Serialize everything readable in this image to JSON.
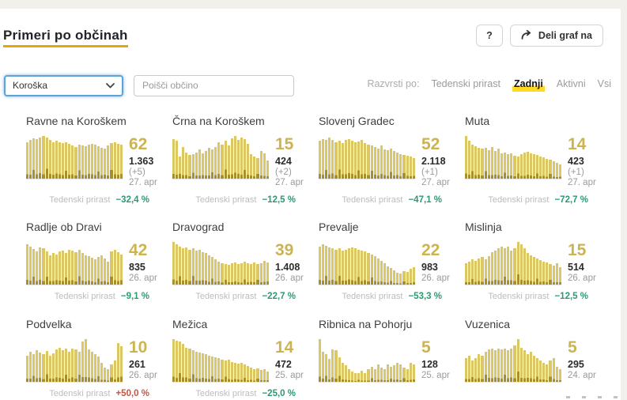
{
  "header": {
    "title": "Primeri po občinah",
    "help_label": "?",
    "share_label": "Deli graf na"
  },
  "filters": {
    "region_value": "Koroška",
    "search_placeholder": "Poišči občino",
    "sort_by_label": "Razvrsti po:",
    "sort_options": [
      {
        "label": "Tedenski prirast"
      },
      {
        "label": "Zadnji"
      },
      {
        "label": "Aktivni"
      },
      {
        "label": "Vsi"
      }
    ]
  },
  "colors": {
    "accent_yellow": "#ffd922",
    "title_underline": "#e2a70b",
    "bar_light": "#dcc765",
    "bar_dark": "#a98e2c",
    "growth_green": "#2c9a6f",
    "growth_red": "#bf5747",
    "focus_blue": "#5ea3d8"
  },
  "cards": [
    {
      "title": "Ravne na Koroškem",
      "active": "62",
      "total": "1.363",
      "delta": "(+5)",
      "date": "27. apr",
      "growth_label": "Tedenski prirast",
      "growth_value": "−32,4 %",
      "growth_style": "color:#2c9a6f",
      "bars": [
        0.86,
        0.9,
        0.95,
        0.93,
        0.97,
        1.0,
        0.96,
        0.9,
        0.86,
        0.88,
        0.86,
        0.84,
        0.85,
        0.82,
        0.78,
        0.74,
        0.8,
        0.78,
        0.76,
        0.8,
        0.82,
        0.79,
        0.76,
        0.72,
        0.7,
        0.78,
        0.83,
        0.85,
        0.82,
        0.79
      ]
    },
    {
      "title": "Črna na Koroškem",
      "active": "15",
      "total": "424",
      "delta": "(+2)",
      "date": "27. apr",
      "growth_label": "Tedenski prirast",
      "growth_value": "−12,5 %",
      "growth_style": "color:#2c9a6f",
      "bars": [
        0.93,
        0.88,
        0.52,
        0.75,
        0.62,
        0.55,
        0.58,
        0.62,
        0.68,
        0.6,
        0.65,
        0.72,
        0.68,
        0.75,
        0.85,
        0.8,
        0.88,
        0.78,
        0.95,
        1.0,
        0.9,
        0.97,
        0.93,
        0.82,
        0.58,
        0.52,
        0.48,
        0.65,
        0.6,
        0.42
      ]
    },
    {
      "title": "Slovenj Gradec",
      "active": "52",
      "total": "2.118",
      "delta": "(+1)",
      "date": "27. apr",
      "growth_label": "Tedenski prirast",
      "growth_value": "−47,1 %",
      "growth_style": "color:#2c9a6f",
      "bars": [
        0.88,
        0.93,
        0.9,
        0.96,
        0.9,
        0.86,
        0.88,
        0.84,
        0.9,
        0.93,
        0.88,
        0.85,
        0.87,
        0.9,
        0.84,
        0.8,
        0.77,
        0.74,
        0.71,
        0.77,
        0.69,
        0.66,
        0.71,
        0.64,
        0.61,
        0.58,
        0.56,
        0.54,
        0.51,
        0.48
      ]
    },
    {
      "title": "Muta",
      "active": "14",
      "total": "423",
      "delta": "(+1)",
      "date": "27. apr",
      "growth_label": "Tedenski prirast",
      "growth_value": "−72,7 %",
      "growth_style": "color:#2c9a6f",
      "bars": [
        1.0,
        0.88,
        0.8,
        0.76,
        0.72,
        0.7,
        0.73,
        0.67,
        0.75,
        0.64,
        0.71,
        0.6,
        0.62,
        0.57,
        0.6,
        0.54,
        0.52,
        0.58,
        0.61,
        0.63,
        0.6,
        0.58,
        0.55,
        0.52,
        0.5,
        0.47,
        0.44,
        0.41,
        0.37,
        0.33
      ]
    },
    {
      "title": "Radlje ob Dravi",
      "active": "42",
      "total": "835",
      "delta": "",
      "date": "26. apr",
      "growth_label": "Tedenski prirast",
      "growth_value": "−9,1 %",
      "growth_style": "color:#2c9a6f",
      "bars": [
        0.95,
        0.9,
        0.84,
        0.79,
        0.88,
        0.85,
        0.78,
        0.7,
        0.75,
        0.71,
        0.78,
        0.81,
        0.74,
        0.82,
        0.8,
        0.77,
        0.82,
        0.74,
        0.7,
        0.67,
        0.64,
        0.6,
        0.65,
        0.7,
        0.61,
        0.54,
        0.78,
        0.82,
        0.77,
        0.71
      ]
    },
    {
      "title": "Dravograd",
      "active": "39",
      "total": "1.408",
      "delta": "",
      "date": "26. apr",
      "growth_label": "Tedenski prirast",
      "growth_value": "−22,7 %",
      "growth_style": "color:#2c9a6f",
      "bars": [
        1.0,
        0.95,
        0.9,
        0.85,
        0.88,
        0.82,
        0.85,
        0.8,
        0.82,
        0.77,
        0.74,
        0.7,
        0.66,
        0.6,
        0.55,
        0.51,
        0.49,
        0.47,
        0.5,
        0.52,
        0.48,
        0.5,
        0.54,
        0.51,
        0.49,
        0.52,
        0.48,
        0.5,
        0.56,
        0.53
      ]
    },
    {
      "title": "Prevalje",
      "active": "22",
      "total": "983",
      "delta": "",
      "date": "26. apr",
      "growth_label": "Tedenski prirast",
      "growth_value": "−53,3 %",
      "growth_style": "color:#2c9a6f",
      "bars": [
        0.9,
        0.95,
        0.92,
        0.88,
        0.85,
        0.83,
        0.86,
        0.81,
        0.83,
        0.86,
        0.88,
        0.85,
        0.82,
        0.8,
        0.78,
        0.74,
        0.71,
        0.67,
        0.61,
        0.56,
        0.5,
        0.44,
        0.39,
        0.34,
        0.29,
        0.27,
        0.32,
        0.3,
        0.38,
        0.41
      ]
    },
    {
      "title": "Mislinja",
      "active": "15",
      "total": "514",
      "delta": "",
      "date": "26. apr",
      "growth_label": "Tedenski prirast",
      "growth_value": "−12,5 %",
      "growth_style": "color:#2c9a6f",
      "bars": [
        0.5,
        0.55,
        0.6,
        0.57,
        0.62,
        0.66,
        0.6,
        0.68,
        0.76,
        0.81,
        0.86,
        0.89,
        0.85,
        0.89,
        0.8,
        0.86,
        1.0,
        0.95,
        0.85,
        0.75,
        0.7,
        0.65,
        0.61,
        0.58,
        0.55,
        0.52,
        0.49,
        0.45,
        0.51,
        0.41
      ]
    },
    {
      "title": "Podvelka",
      "active": "10",
      "total": "261",
      "delta": "",
      "date": "26. apr",
      "growth_label": "Tedenski prirast",
      "growth_value": "+50,0 %",
      "growth_style": "color:#bf5747",
      "bars": [
        0.6,
        0.7,
        0.64,
        0.74,
        0.69,
        0.64,
        0.72,
        0.6,
        0.67,
        0.75,
        0.8,
        0.74,
        0.78,
        0.71,
        0.78,
        0.75,
        0.7,
        0.95,
        1.0,
        0.76,
        0.7,
        0.64,
        0.59,
        0.45,
        0.34,
        0.29,
        0.4,
        0.5,
        0.9,
        0.84
      ]
    },
    {
      "title": "Mežica",
      "active": "14",
      "total": "472",
      "delta": "",
      "date": "25. apr",
      "growth_label": "Tedenski prirast",
      "growth_value": "−25,0 %",
      "growth_style": "color:#2c9a6f",
      "bars": [
        1.0,
        0.97,
        0.94,
        0.89,
        0.8,
        0.77,
        0.74,
        0.71,
        0.69,
        0.67,
        0.64,
        0.61,
        0.59,
        0.57,
        0.55,
        0.52,
        0.5,
        0.52,
        0.47,
        0.44,
        0.42,
        0.45,
        0.4,
        0.37,
        0.34,
        0.3,
        0.32,
        0.27,
        0.3,
        0.24
      ]
    },
    {
      "title": "Ribnica na Pohorju",
      "active": "5",
      "total": "128",
      "delta": "",
      "date": "25. apr",
      "growth_label": "",
      "growth_value": "",
      "growth_style": "",
      "bars": [
        1.0,
        0.7,
        0.64,
        0.54,
        0.75,
        0.74,
        0.58,
        0.44,
        0.38,
        0.3,
        0.24,
        0.2,
        0.21,
        0.25,
        0.2,
        0.3,
        0.35,
        0.29,
        0.4,
        0.34,
        0.3,
        0.4,
        0.35,
        0.39,
        0.44,
        0.4,
        0.34,
        0.3,
        0.45,
        0.4
      ]
    },
    {
      "title": "Vuzenica",
      "active": "5",
      "total": "295",
      "delta": "",
      "date": "24. apr",
      "growth_label": "",
      "growth_value": "",
      "growth_style": "",
      "bars": [
        0.55,
        0.6,
        0.5,
        0.56,
        0.64,
        0.6,
        0.7,
        0.75,
        0.77,
        0.74,
        0.77,
        0.75,
        0.78,
        0.74,
        0.78,
        0.85,
        1.0,
        0.8,
        0.74,
        0.65,
        0.7,
        0.6,
        0.55,
        0.5,
        0.45,
        0.4,
        0.5,
        0.55,
        0.35,
        0.29
      ]
    }
  ]
}
